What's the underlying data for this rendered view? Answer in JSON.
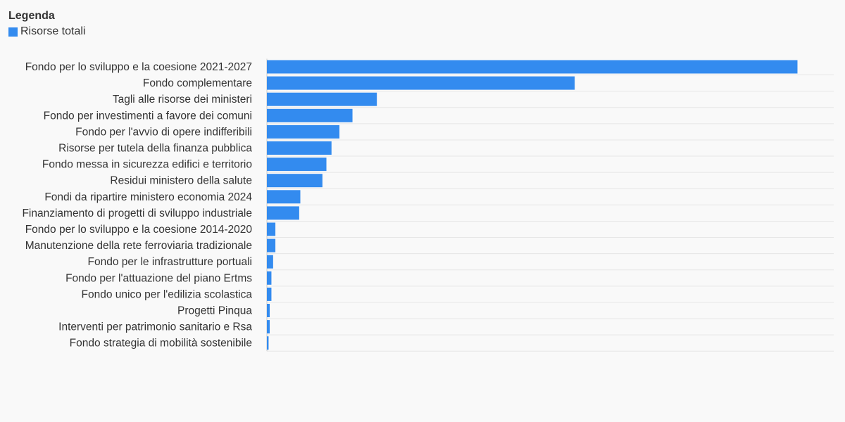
{
  "legend": {
    "title": "Legenda",
    "items": [
      {
        "label": "Risorse totali",
        "color": "#338bef"
      }
    ]
  },
  "chart_data": {
    "type": "bar",
    "orientation": "horizontal",
    "grid": true,
    "legend_position": "top-left",
    "xlim": [
      0,
      100
    ],
    "categories": [
      "Fondo per lo sviluppo e la coesione 2021-2027",
      "Fondo complementare",
      "Tagli alle risorse dei ministeri",
      "Fondo per investimenti a favore dei comuni",
      "Fondo per l'avvio di opere indifferibili",
      "Risorse per tutela della finanza pubblica",
      "Fondo messa in sicurezza edifici e territorio",
      "Residui ministero della salute",
      "Fondi da ripartire ministero economia 2024",
      "Finanziamento di progetti di sviluppo industriale",
      "Fondo per lo sviluppo e la coesione 2014-2020",
      "Manutenzione della rete ferroviaria tradizionale",
      "Fondo per le infrastrutture portuali",
      "Fondo per l'attuazione del piano Ertms",
      "Fondo unico per l'edilizia scolastica",
      "Progetti Pinqua",
      "Interventi per patrimonio sanitario e Rsa",
      "Fondo strategia di mobilità sostenibile"
    ],
    "series": [
      {
        "name": "Risorse totali",
        "color": "#338bef",
        "values": [
          93.6,
          54.3,
          19.4,
          15.1,
          12.8,
          11.4,
          10.5,
          9.8,
          5.9,
          5.7,
          1.5,
          1.5,
          1.1,
          0.8,
          0.8,
          0.5,
          0.5,
          0.3
        ]
      }
    ]
  }
}
